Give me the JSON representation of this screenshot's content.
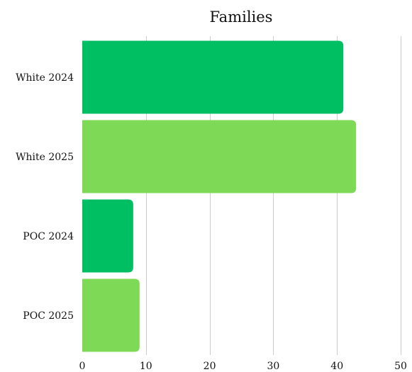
{
  "chart_data": {
    "type": "bar",
    "orientation": "horizontal",
    "title": "Families",
    "xlabel": "",
    "ylabel": "",
    "categories": [
      "White 2024",
      "White 2025",
      "POC 2024",
      "POC 2025"
    ],
    "values": [
      41,
      43,
      8,
      9
    ],
    "bar_colors": [
      "#00bf63",
      "#7ed957",
      "#00bf63",
      "#7ed957"
    ],
    "xlim": [
      0,
      50
    ],
    "x_ticks": [
      0,
      10,
      20,
      30,
      40,
      50
    ],
    "grid": "vertical",
    "legend": "none"
  }
}
